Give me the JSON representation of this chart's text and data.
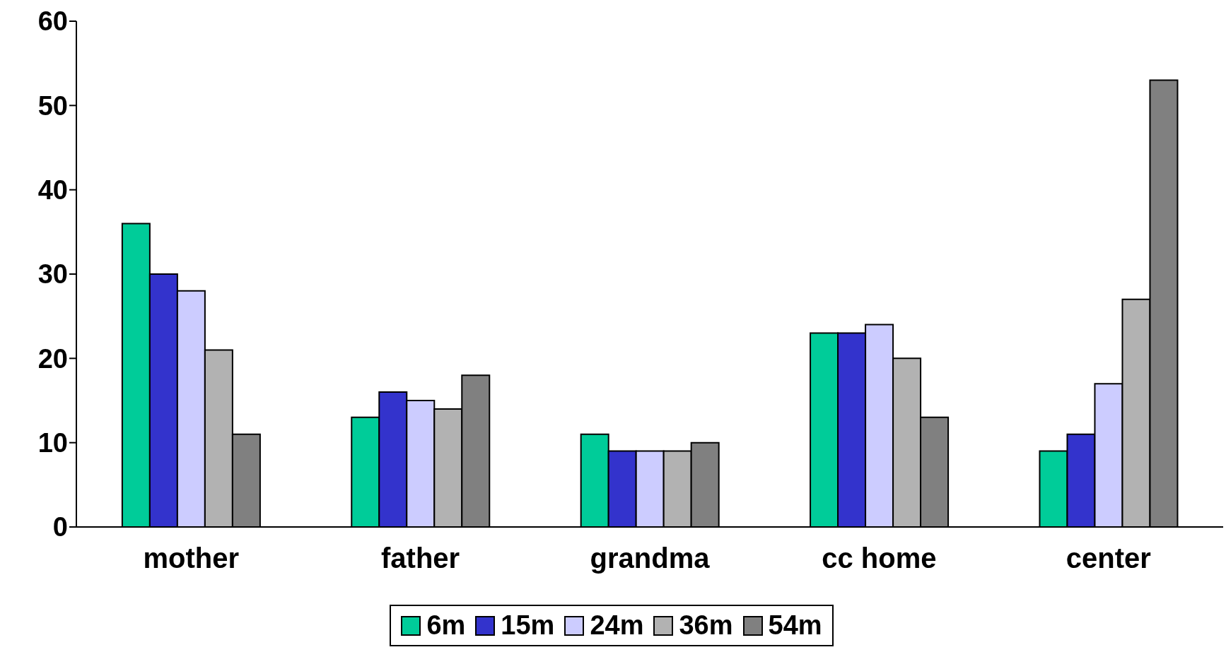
{
  "chart_data": {
    "type": "bar",
    "categories": [
      "mother",
      "father",
      "grandma",
      "cc home",
      "center"
    ],
    "series": [
      {
        "name": "6m",
        "color": "#00cc99",
        "values": [
          36,
          13,
          11,
          23,
          9
        ]
      },
      {
        "name": "15m",
        "color": "#3333cc",
        "values": [
          30,
          16,
          9,
          23,
          11
        ]
      },
      {
        "name": "24m",
        "color": "#ccccff",
        "values": [
          28,
          15,
          9,
          24,
          17
        ]
      },
      {
        "name": "36m",
        "color": "#b2b2b2",
        "values": [
          21,
          14,
          9,
          20,
          27
        ]
      },
      {
        "name": "54m",
        "color": "#808080",
        "values": [
          11,
          18,
          10,
          13,
          53
        ]
      }
    ],
    "ylim": [
      0,
      60
    ],
    "yticks": [
      0,
      10,
      20,
      30,
      40,
      50,
      60
    ],
    "grid": false,
    "legend": "bottom"
  }
}
